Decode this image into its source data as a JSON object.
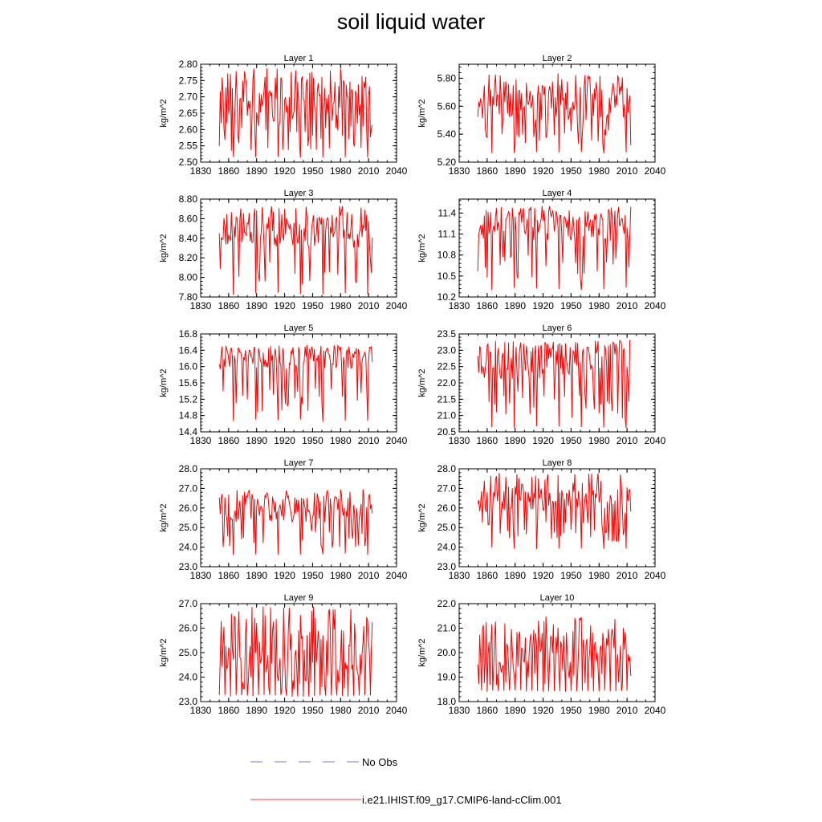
{
  "title": "soil liquid water",
  "colors": {
    "model": "#ff0000",
    "obs": "#7777cc",
    "axis": "#000000"
  },
  "legend": [
    {
      "label": "No Obs",
      "style": "dashed",
      "color": "#7777cc"
    },
    {
      "label": "i.e21.IHIST.f09_g17.CMIP6-land-cClim.001",
      "style": "solid",
      "color": "#ff0000"
    }
  ],
  "chart_data": [
    {
      "type": "line",
      "title": "Layer 1",
      "ylabel": "kg/m^2",
      "xlim": [
        1830,
        2040
      ],
      "ylim": [
        2.5,
        2.8
      ],
      "xticks": [
        "1830",
        "1860",
        "1890",
        "1920",
        "1950",
        "1980",
        "2010",
        "2040"
      ],
      "yticks": [
        "2.50",
        "2.55",
        "2.60",
        "2.65",
        "2.70",
        "2.75",
        "2.80"
      ],
      "x_start": 1850,
      "x_end": 2014,
      "cycle_years": 24,
      "cycle_phase": 9,
      "series": [
        {
          "mean": 2.67,
          "amplitude": 0.06,
          "dip_min": 2.51,
          "peak_max": 2.79
        }
      ]
    },
    {
      "type": "line",
      "title": "Layer 2",
      "ylabel": "kg/m^2",
      "xlim": [
        1830,
        2040
      ],
      "ylim": [
        5.2,
        5.9
      ],
      "xticks": [
        "1830",
        "1860",
        "1890",
        "1920",
        "1950",
        "1980",
        "2010",
        "2040"
      ],
      "yticks": [
        "5.20",
        "5.40",
        "5.60",
        "5.80"
      ],
      "x_start": 1850,
      "x_end": 2014,
      "cycle_years": 24,
      "cycle_phase": 9,
      "series": [
        {
          "mean": 5.63,
          "amplitude": 0.1,
          "dip_min": 5.26,
          "peak_max": 5.84
        }
      ]
    },
    {
      "type": "line",
      "title": "Layer 3",
      "ylabel": "kg/m^2",
      "xlim": [
        1830,
        2040
      ],
      "ylim": [
        7.8,
        8.8
      ],
      "xticks": [
        "1830",
        "1860",
        "1890",
        "1920",
        "1950",
        "1980",
        "2010",
        "2040"
      ],
      "yticks": [
        "7.80",
        "8.00",
        "8.20",
        "8.40",
        "8.60",
        "8.80"
      ],
      "x_start": 1850,
      "x_end": 2014,
      "cycle_years": 24,
      "cycle_phase": 9,
      "series": [
        {
          "mean": 8.46,
          "amplitude": 0.12,
          "dip_min": 7.82,
          "peak_max": 8.74
        }
      ]
    },
    {
      "type": "line",
      "title": "Layer 4",
      "ylabel": "kg/m^2",
      "xlim": [
        1830,
        2040
      ],
      "ylim": [
        10.2,
        11.6
      ],
      "xticks": [
        "1830",
        "1860",
        "1890",
        "1920",
        "1950",
        "1980",
        "2010",
        "2040"
      ],
      "yticks": [
        "10.2",
        "10.5",
        "10.8",
        "11.1",
        "11.4"
      ],
      "x_start": 1850,
      "x_end": 2014,
      "cycle_years": 24,
      "cycle_phase": 9,
      "series": [
        {
          "mean": 11.2,
          "amplitude": 0.15,
          "dip_min": 10.3,
          "peak_max": 11.5
        }
      ]
    },
    {
      "type": "line",
      "title": "Layer 5",
      "ylabel": "kg/m^2",
      "xlim": [
        1830,
        2040
      ],
      "ylim": [
        14.4,
        16.8
      ],
      "xticks": [
        "1830",
        "1860",
        "1890",
        "1920",
        "1950",
        "1980",
        "2010",
        "2040"
      ],
      "yticks": [
        "14.4",
        "14.8",
        "15.2",
        "15.6",
        "16.0",
        "16.4",
        "16.8"
      ],
      "x_start": 1850,
      "x_end": 2014,
      "cycle_years": 24,
      "cycle_phase": 9,
      "series": [
        {
          "mean": 16.2,
          "amplitude": 0.2,
          "dip_min": 14.65,
          "peak_max": 16.55
        }
      ]
    },
    {
      "type": "line",
      "title": "Layer 6",
      "ylabel": "kg/m^2",
      "xlim": [
        1830,
        2040
      ],
      "ylim": [
        20.5,
        23.5
      ],
      "xticks": [
        "1830",
        "1860",
        "1890",
        "1920",
        "1950",
        "1980",
        "2010",
        "2040"
      ],
      "yticks": [
        "20.5",
        "21.0",
        "21.5",
        "22.0",
        "22.5",
        "23.0",
        "23.5"
      ],
      "x_start": 1850,
      "x_end": 2014,
      "cycle_years": 24,
      "cycle_phase": 9,
      "series": [
        {
          "mean": 22.7,
          "amplitude": 0.45,
          "dip_min": 20.6,
          "peak_max": 23.3
        }
      ]
    },
    {
      "type": "line",
      "title": "Layer 7",
      "ylabel": "kg/m^2",
      "xlim": [
        1830,
        2040
      ],
      "ylim": [
        23.0,
        28.0
      ],
      "xticks": [
        "1830",
        "1860",
        "1890",
        "1920",
        "1950",
        "1980",
        "2010",
        "2040"
      ],
      "yticks": [
        "23.0",
        "24.0",
        "25.0",
        "26.0",
        "27.0",
        "28.0"
      ],
      "x_start": 1850,
      "x_end": 2014,
      "cycle_years": 24,
      "cycle_phase": 9,
      "series": [
        {
          "mean": 25.9,
          "amplitude": 0.5,
          "dip_min": 23.6,
          "peak_max": 27.0
        }
      ]
    },
    {
      "type": "line",
      "title": "Layer 8",
      "ylabel": "kg/m^2",
      "xlim": [
        1830,
        2040
      ],
      "ylim": [
        23.0,
        28.0
      ],
      "xticks": [
        "1830",
        "1860",
        "1890",
        "1920",
        "1950",
        "1980",
        "2010",
        "2040"
      ],
      "yticks": [
        "23.0",
        "24.0",
        "25.0",
        "26.0",
        "27.0",
        "28.0"
      ],
      "x_start": 1850,
      "x_end": 2014,
      "cycle_years": 24,
      "cycle_phase": 9,
      "series": [
        {
          "mean": 26.4,
          "amplitude": 0.55,
          "dip_min": 23.9,
          "peak_max": 27.8
        }
      ]
    },
    {
      "type": "line",
      "title": "Layer 9",
      "ylabel": "kg/m^2",
      "xlim": [
        1830,
        2040
      ],
      "ylim": [
        23.0,
        27.0
      ],
      "xticks": [
        "1830",
        "1860",
        "1890",
        "1920",
        "1950",
        "1980",
        "2010",
        "2040"
      ],
      "yticks": [
        "23.0",
        "24.0",
        "25.0",
        "26.0",
        "27.0"
      ],
      "x_start": 1850,
      "x_end": 2014,
      "cycle_years": 6,
      "cycle_phase": 0,
      "series": [
        {
          "mean": 25.0,
          "amplitude": 0.75,
          "dip_min": 23.2,
          "peak_max": 26.9
        }
      ]
    },
    {
      "type": "line",
      "title": "Layer 10",
      "ylabel": "kg/m^2",
      "xlim": [
        1830,
        2040
      ],
      "ylim": [
        18.0,
        22.0
      ],
      "xticks": [
        "1830",
        "1860",
        "1890",
        "1920",
        "1950",
        "1980",
        "2010",
        "2040"
      ],
      "yticks": [
        "18.0",
        "19.0",
        "20.0",
        "21.0",
        "22.0"
      ],
      "x_start": 1850,
      "x_end": 2014,
      "cycle_years": 6,
      "cycle_phase": 2,
      "series": [
        {
          "mean": 20.1,
          "amplitude": 0.6,
          "dip_min": 18.4,
          "peak_max": 21.6
        }
      ]
    }
  ]
}
